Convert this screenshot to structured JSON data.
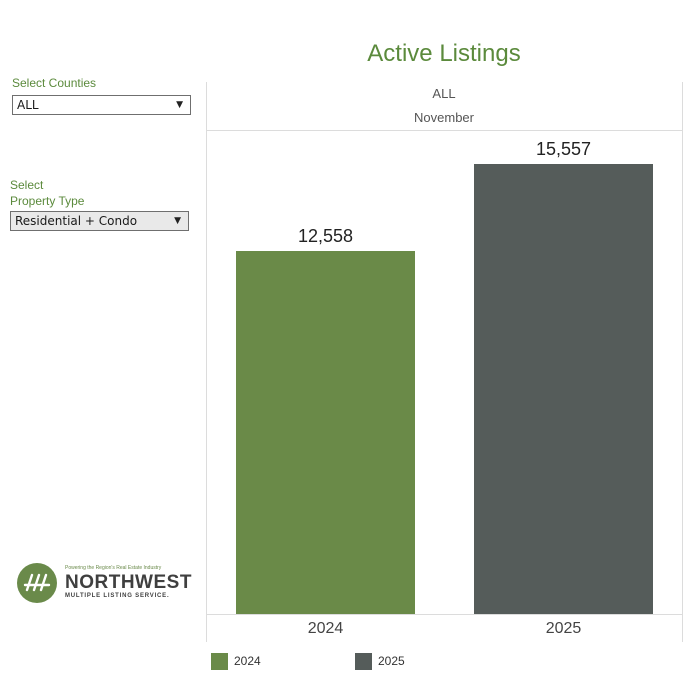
{
  "filters": {
    "counties": {
      "label": "Select Counties",
      "value": "ALL"
    },
    "property_type": {
      "label_line1": "Select",
      "label_line2": "Property Type",
      "value": "Residential + Condo"
    }
  },
  "logo": {
    "tagline": "Powering the Region's Real Estate Industry",
    "name": "NORTHWEST",
    "subname": "MULTIPLE LISTING SERVICE."
  },
  "chart_data": {
    "type": "bar",
    "title": "Active Listings",
    "header_lines": [
      "ALL",
      "November"
    ],
    "categories": [
      "2024",
      "2025"
    ],
    "values": [
      12558,
      15557
    ],
    "value_labels": [
      "12,558",
      "15,557"
    ],
    "colors": [
      "#6a8a48",
      "#555c5a"
    ],
    "legend": [
      {
        "name": "2024",
        "color": "#6a8a48"
      },
      {
        "name": "2025",
        "color": "#555c5a"
      }
    ],
    "ylim": [
      0,
      16750
    ],
    "grid": false,
    "legend_position": "bottom"
  }
}
